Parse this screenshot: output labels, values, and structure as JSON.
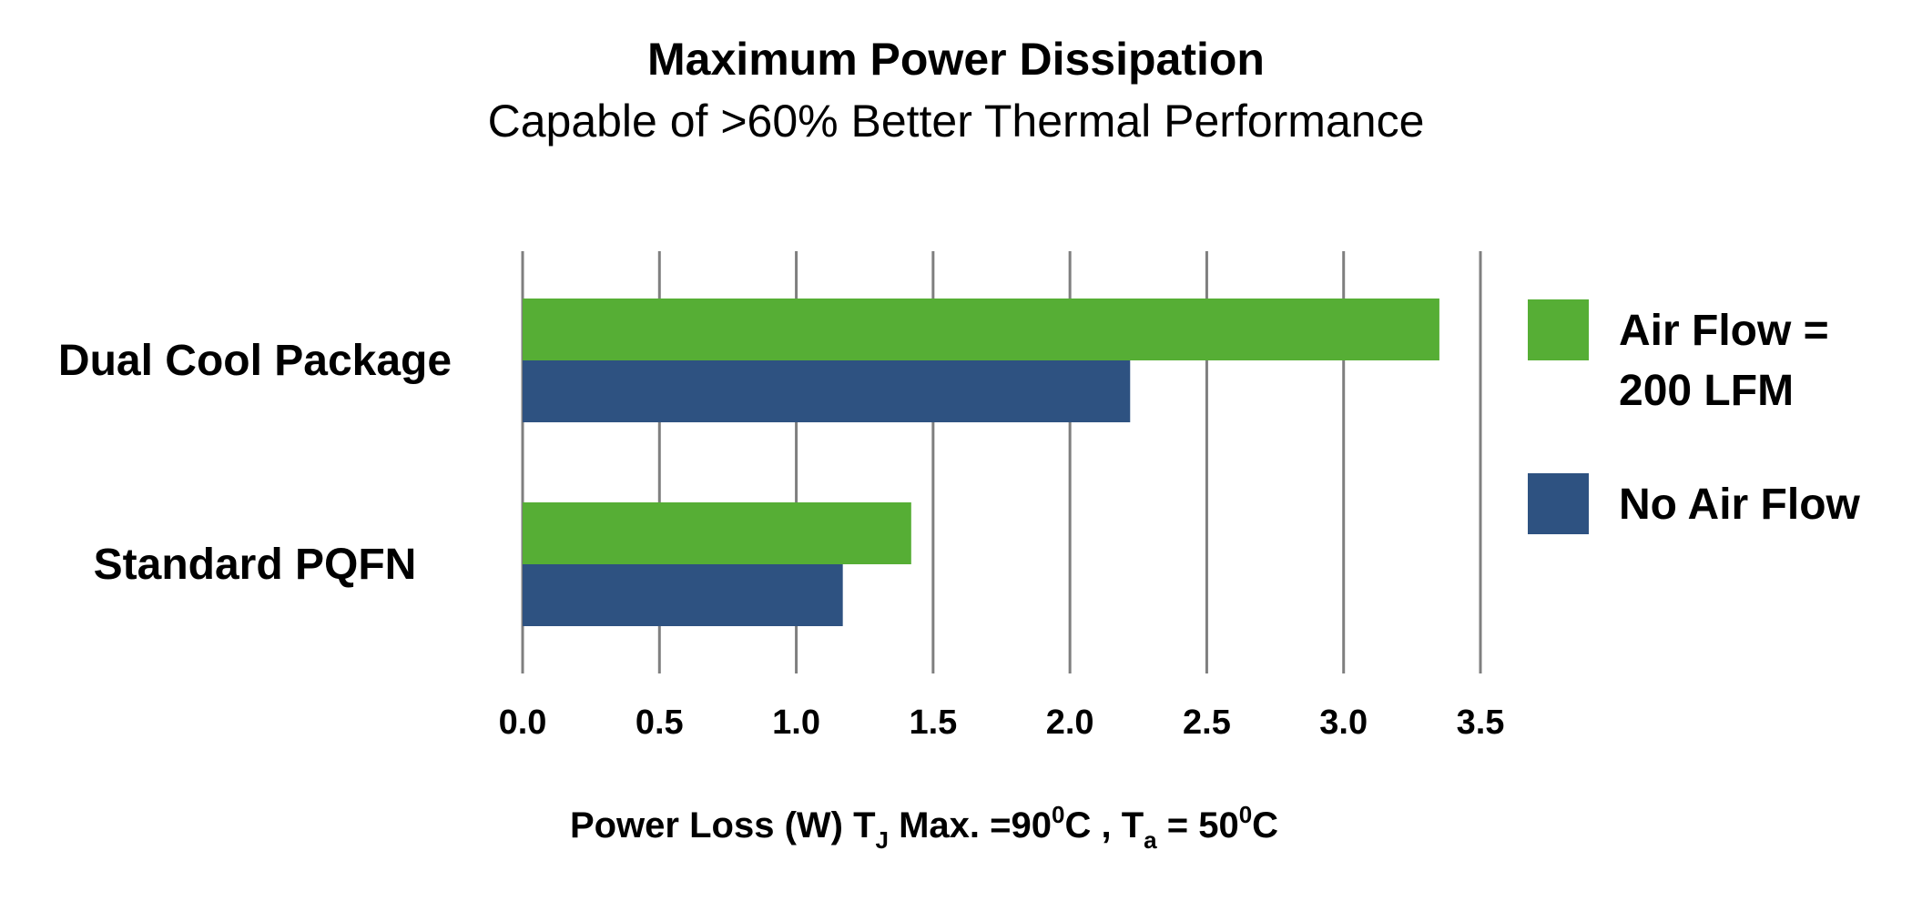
{
  "chart_data": {
    "type": "bar",
    "orientation": "horizontal",
    "title": "Maximum Power Dissipation",
    "subtitle": "Capable of >60% Better Thermal Performance",
    "categories": [
      "Dual Cool Package",
      "Standard PQFN"
    ],
    "series": [
      {
        "name": "Air Flow = 200 LFM",
        "name_lines": [
          "Air Flow =",
          "200 LFM"
        ],
        "color": "#56ae35",
        "values": [
          3.35,
          1.42
        ]
      },
      {
        "name": "No Air Flow",
        "name_lines": [
          "No Air Flow"
        ],
        "color": "#2e5281",
        "values": [
          2.22,
          1.17
        ]
      }
    ],
    "x_ticks": [
      "0.0",
      "0.5",
      "1.0",
      "1.5",
      "2.0",
      "2.5",
      "3.0",
      "3.5"
    ],
    "xlim": [
      0,
      3.5
    ],
    "xlabel": {
      "part1": "Power Loss (W) T",
      "sub1": "J",
      "part2": " Max. =90",
      "sup1": "0",
      "part3": "C , T",
      "sub2": "a",
      "part4": " = 50",
      "sup2": "0",
      "part5": "C"
    },
    "grid": "vertical",
    "legend_position": "right",
    "grid_color": "#7f7f7f"
  }
}
